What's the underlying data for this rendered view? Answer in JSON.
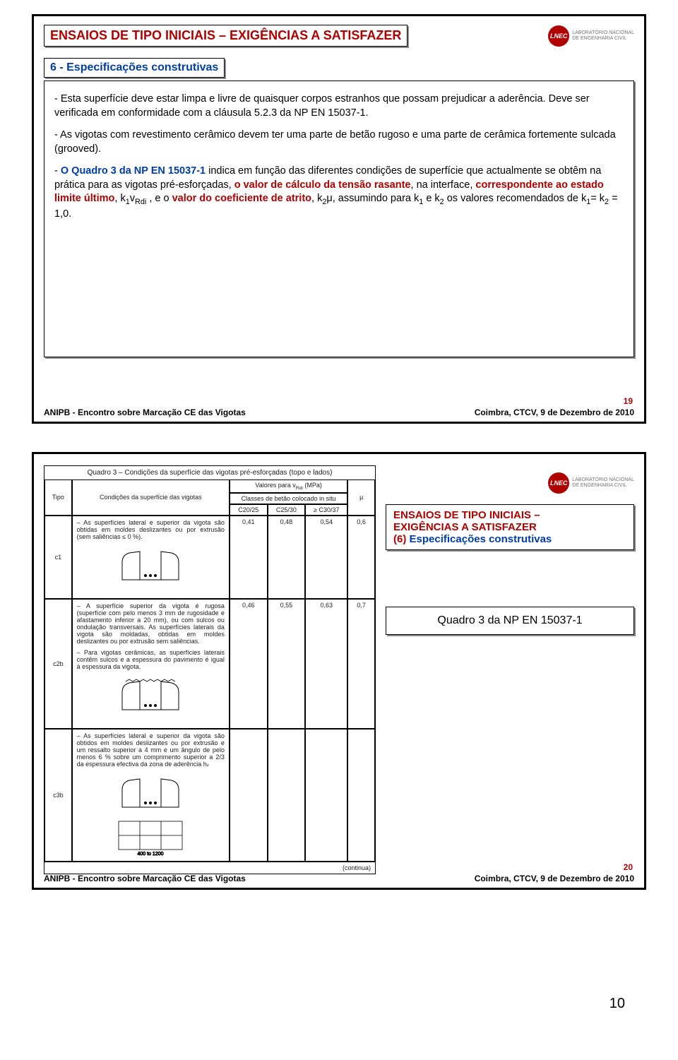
{
  "logo": {
    "badge": "LNEC",
    "line1": "LABORATÓRIO NACIONAL",
    "line2": "DE ENGENHARIA CIVIL"
  },
  "colors": {
    "accent_red": "#b00000",
    "accent_blue": "#003da6",
    "border": "#000000"
  },
  "footer": {
    "left": "ANIPB  -  Encontro sobre Marcação CE das Vigotas",
    "right": "Coimbra, CTCV, 9 de Dezembro de 2010"
  },
  "bottom_page": "10",
  "slide19": {
    "page_num": "19",
    "title": "ENSAIOS DE TIPO INICIAIS – EXIGÊNCIAS A SATISFAZER",
    "subtitle": "6 - Especificações construtivas",
    "para1": "-  Esta superfície deve estar limpa e livre de quaisquer corpos estranhos que possam prejudicar a aderência. Deve ser verificada em conformidade com a cláusula 5.2.3 da NP EN 15037-1.",
    "para2": "-  As vigotas com revestimento cerâmico devem ter uma parte de betão rugoso e uma parte de cerâmica fortemente sulcada (grooved).",
    "p3_seg1": "-  ",
    "p3_seg2": "O Quadro 3 da NP EN 15037-1",
    "p3_seg3": " indica em função das diferentes condições de superfície que actualmente se obtêm na prática para as vigotas pré-esforçadas, ",
    "p3_seg4": "o valor de cálculo da tensão rasante",
    "p3_seg5": ", na interface, ",
    "p3_seg6": "correspondente ao estado limite último",
    "p3_seg7": ", k",
    "p3_seg7b": "1",
    "p3_seg7c": "v",
    "p3_seg7d": "Rdi",
    "p3_seg8": " , e o ",
    "p3_seg9": "valor do coeficiente de atrito",
    "p3_seg10": ", k",
    "p3_seg10b": "2",
    "p3_seg11": "μ, assumindo para k",
    "p3_seg11b": "1",
    "p3_seg12": " e k",
    "p3_seg12b": "2",
    "p3_seg13": " os valores recomendados de k",
    "p3_seg13b": "1",
    "p3_seg14": "= k",
    "p3_seg14b": "2",
    "p3_seg15": " = 1,0."
  },
  "slide20": {
    "page_num": "20",
    "right_box": {
      "line1": "ENSAIOS DE TIPO INICIAIS –",
      "line2": "EXIGÊNCIAS A SATISFAZER",
      "line3a": "(6)",
      "line3b": "  Especificações construtivas"
    },
    "quadro_label": "Quadro 3 da NP EN 15037-1",
    "table": {
      "caption": "Quadro 3 – Condições da superfície das vigotas pré-esforçadas (topo e lados)",
      "head_valores": "Valores para v",
      "head_valores_sub": "Rdi",
      "head_valores_unit": " (MPa)",
      "head_classes": "Classes de betão colocado in situ",
      "col_tipo": "Tipo",
      "col_cond": "Condições da superfície das vigotas",
      "col_c20": "C20/25",
      "col_c25": "C25/30",
      "col_c30": "≥ C30/37",
      "col_mu": "µ",
      "rows": [
        {
          "tipo": "c1",
          "desc": "– As superfícies lateral e superior da vigota são obtidas em moldes deslizantes ou por extrusão (sem saliências ≤ 0 %).",
          "c20": "0,41",
          "c25": "0,48",
          "c30": "0,54",
          "mu": "0,6",
          "svg_variant": 1
        },
        {
          "tipo": "c2b",
          "desc": "– A superfície superior da vigota é rugosa (superfície com pelo menos 3 mm de rugosidade e afastamento inferior a 20 mm), ou com sulcos ou ondulação transversais. As superfícies laterais da vigota são moldadas, obtidas em moldes deslizantes ou por extrusão sem saliências.\n\n– Para vigotas cerâmicas, as superfícies laterais contêm sulcos e a espessura do pavimento é igual à espessura da vigota.",
          "c20": "0,46",
          "c25": "0,55",
          "c30": "0,63",
          "mu": "0,7",
          "svg_variant": 2
        },
        {
          "tipo": "c3b",
          "desc": "– As superfícies lateral e superior da vigota são obtidos em moldes deslizantes ou por extrusão e um ressalto superior a 4 mm e um ângulo de pelo menos 6 % sobre um comprimento superior a 2/3 da espessura efectiva da zona de aderência hᵥ",
          "c20": "",
          "c25": "",
          "c30": "",
          "mu": "",
          "svg_variant": 3
        }
      ],
      "continua": "(continua)"
    }
  }
}
